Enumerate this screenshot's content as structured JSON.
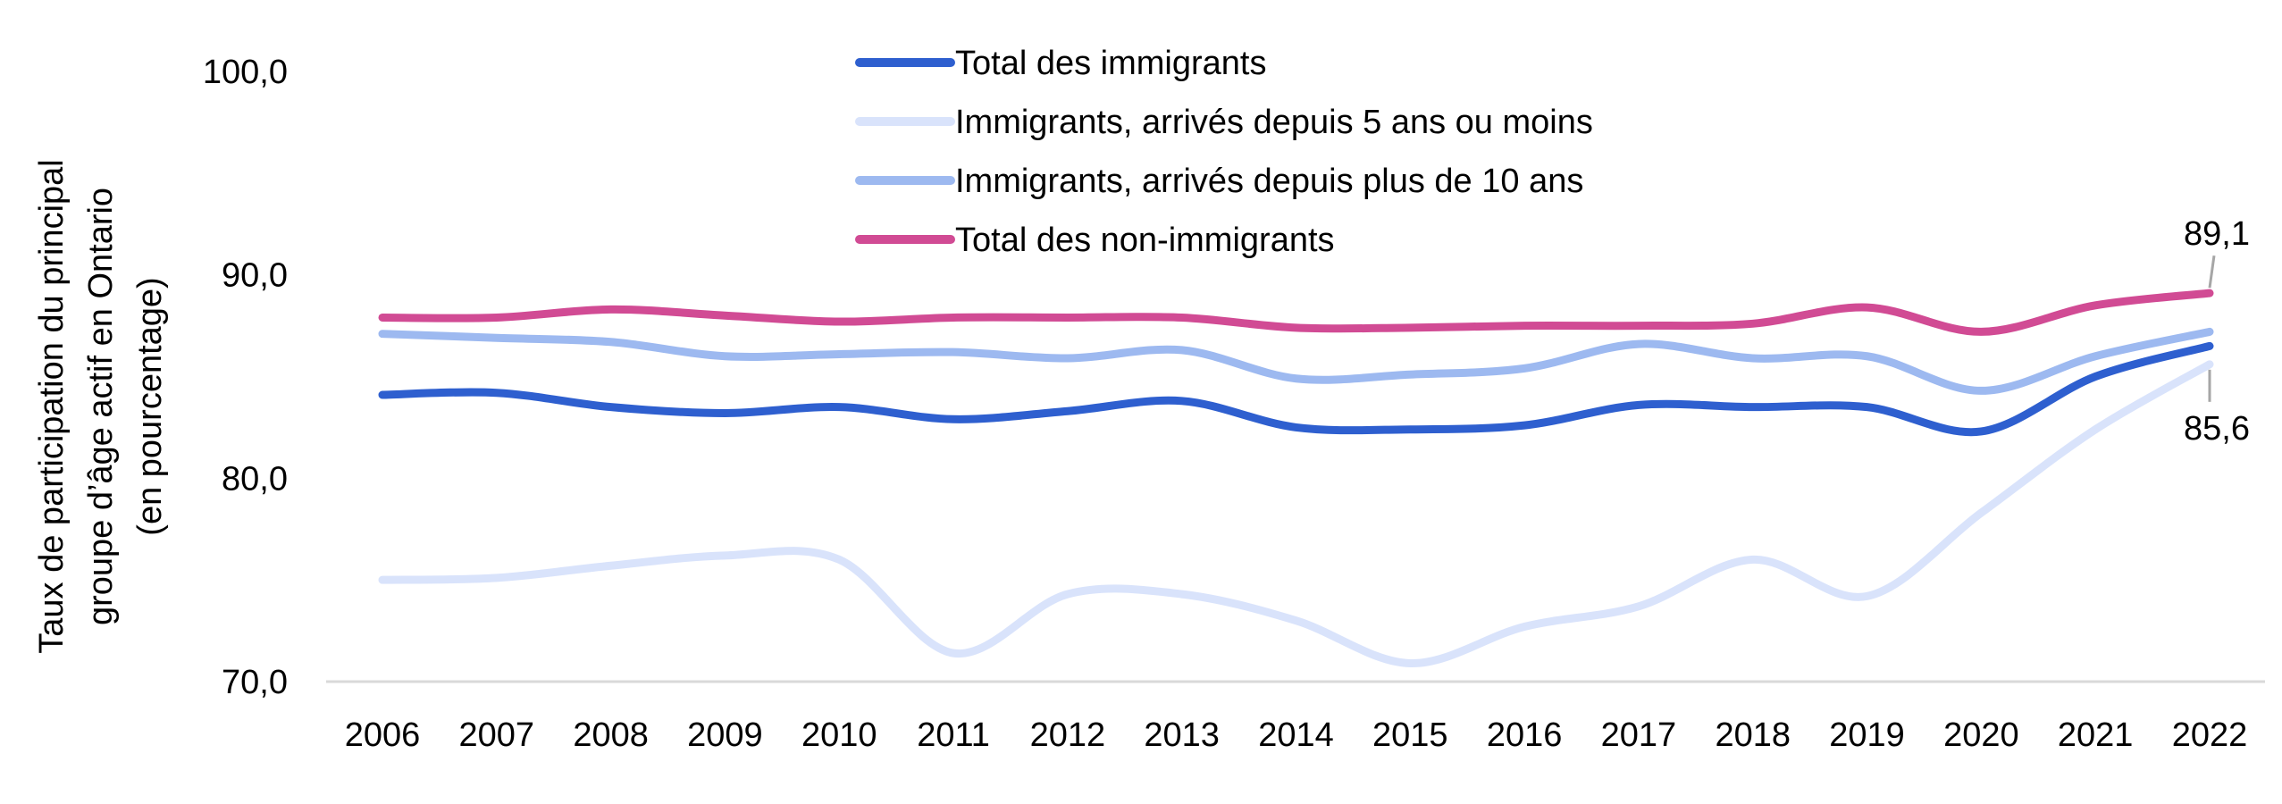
{
  "chart_data": {
    "type": "line",
    "x": [
      "2006",
      "2007",
      "2008",
      "2009",
      "2010",
      "2011",
      "2012",
      "2013",
      "2014",
      "2015",
      "2016",
      "2017",
      "2018",
      "2019",
      "2020",
      "2021",
      "2022"
    ],
    "ylabel": [
      "Taux de participation du principal",
      "groupe d’âge actif en Ontario",
      "(en pourcentage)"
    ],
    "ylim": [
      70,
      100
    ],
    "yticks": [
      "70,0",
      "80,0",
      "90,0",
      "100,0"
    ],
    "ytick_values": [
      70,
      80,
      90,
      100
    ],
    "grid": false,
    "legend_position": "top-center",
    "series": [
      {
        "name": "Total des immigrants",
        "color": "#2e5fcf",
        "values": [
          84.1,
          84.2,
          83.5,
          83.2,
          83.5,
          82.9,
          83.3,
          83.8,
          82.5,
          82.4,
          82.6,
          83.6,
          83.5,
          83.5,
          82.3,
          85.0,
          86.5
        ]
      },
      {
        "name": "Immigrants, arrivés depuis 5 ans ou moins",
        "color": "#d9e3fb",
        "values": [
          75.0,
          75.1,
          75.7,
          76.2,
          76.0,
          71.4,
          74.3,
          74.3,
          73.0,
          70.9,
          72.7,
          73.7,
          76.0,
          74.2,
          78.3,
          82.4,
          85.6
        ]
      },
      {
        "name": "Immigrants, arrivés depuis plus de 10 ans",
        "color": "#9db9f0",
        "values": [
          87.1,
          86.9,
          86.7,
          86.0,
          86.1,
          86.2,
          85.9,
          86.3,
          84.9,
          85.1,
          85.4,
          86.6,
          85.9,
          86.0,
          84.3,
          86.0,
          87.2
        ]
      },
      {
        "name": "Total des non-immigrants",
        "color": "#d14b94",
        "values": [
          87.9,
          87.9,
          88.3,
          88.0,
          87.7,
          87.9,
          87.9,
          87.9,
          87.4,
          87.4,
          87.5,
          87.5,
          87.6,
          88.4,
          87.2,
          88.5,
          89.1
        ]
      }
    ],
    "annotations": [
      {
        "text": "89,1",
        "series": "Total des non-immigrants",
        "x": "2022",
        "y": 89.1
      },
      {
        "text": "85,6",
        "series": "Immigrants, arrivés depuis 5 ans ou moins",
        "x": "2022",
        "y": 85.6
      }
    ]
  }
}
